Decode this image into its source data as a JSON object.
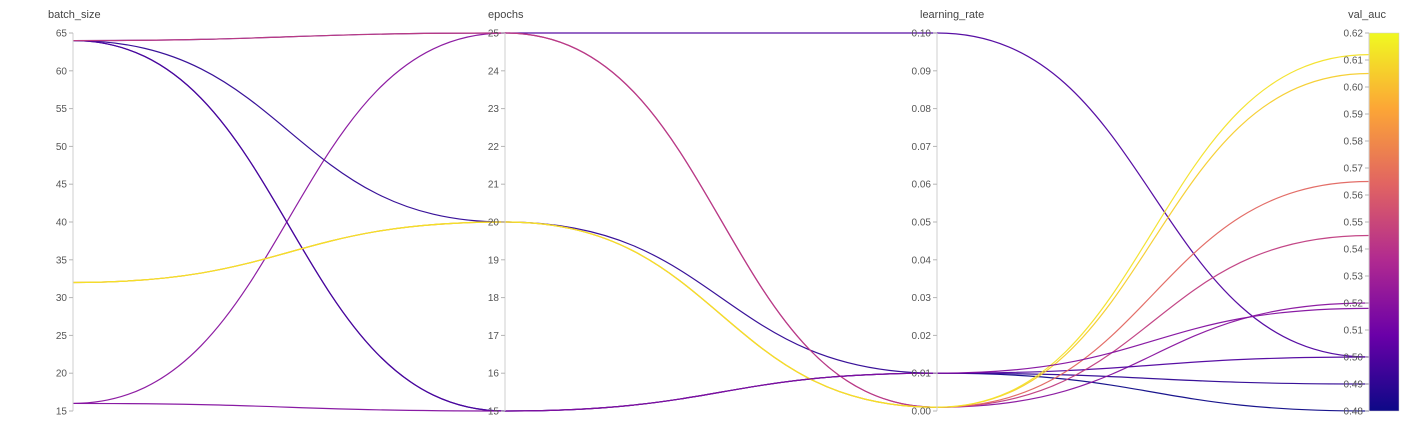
{
  "chart_data": {
    "type": "parallel_coordinates",
    "axes": [
      {
        "name": "batch_size",
        "range": [
          15,
          65
        ],
        "ticks": [
          15,
          20,
          25,
          30,
          35,
          40,
          45,
          50,
          55,
          60,
          65
        ],
        "tick_labels": [
          "15",
          "20",
          "25",
          "30",
          "35",
          "40",
          "45",
          "50",
          "55",
          "60",
          "65"
        ]
      },
      {
        "name": "epochs",
        "range": [
          15,
          25
        ],
        "ticks": [
          15,
          16,
          17,
          18,
          19,
          20,
          21,
          22,
          23,
          24,
          25
        ],
        "tick_labels": [
          "15",
          "16",
          "17",
          "18",
          "19",
          "20",
          "21",
          "22",
          "23",
          "24",
          "25"
        ]
      },
      {
        "name": "learning_rate",
        "range": [
          0,
          0.1
        ],
        "ticks": [
          0,
          0.01,
          0.02,
          0.03,
          0.04,
          0.05,
          0.06,
          0.07,
          0.08,
          0.09,
          0.1
        ],
        "tick_labels": [
          "0.00",
          "0.01",
          "0.02",
          "0.03",
          "0.04",
          "0.05",
          "0.06",
          "0.07",
          "0.08",
          "0.09",
          "0.10"
        ]
      },
      {
        "name": "val_auc",
        "range": [
          0.48,
          0.62
        ],
        "ticks": [
          0.48,
          0.49,
          0.5,
          0.51,
          0.52,
          0.53,
          0.54,
          0.55,
          0.56,
          0.57,
          0.58,
          0.59,
          0.6,
          0.61,
          0.62
        ],
        "tick_labels": [
          "0.48",
          "0.49",
          "0.50",
          "0.51",
          "0.52",
          "0.53",
          "0.54",
          "0.55",
          "0.56",
          "0.57",
          "0.58",
          "0.59",
          "0.60",
          "0.61",
          "0.62"
        ]
      }
    ],
    "runs": [
      {
        "values": [
          64,
          25,
          0.1,
          0.5
        ]
      },
      {
        "values": [
          64,
          15,
          0.01,
          0.48
        ]
      },
      {
        "values": [
          64,
          20,
          0.01,
          0.49
        ]
      },
      {
        "values": [
          16,
          25,
          0.001,
          0.52
        ]
      },
      {
        "values": [
          64,
          15,
          0.01,
          0.5
        ]
      },
      {
        "values": [
          64,
          25,
          0.001,
          0.545
        ]
      },
      {
        "values": [
          32,
          20,
          0.001,
          0.565
        ]
      },
      {
        "values": [
          32,
          20,
          0.001,
          0.605
        ]
      },
      {
        "values": [
          32,
          20,
          0.001,
          0.612
        ]
      },
      {
        "values": [
          16,
          15,
          0.01,
          0.518
        ]
      }
    ],
    "colorscale": {
      "by": "val_auc",
      "stops": [
        "#0d0887",
        "#6a00a8",
        "#b12a90",
        "#e16462",
        "#fca636",
        "#f0f921"
      ]
    }
  }
}
